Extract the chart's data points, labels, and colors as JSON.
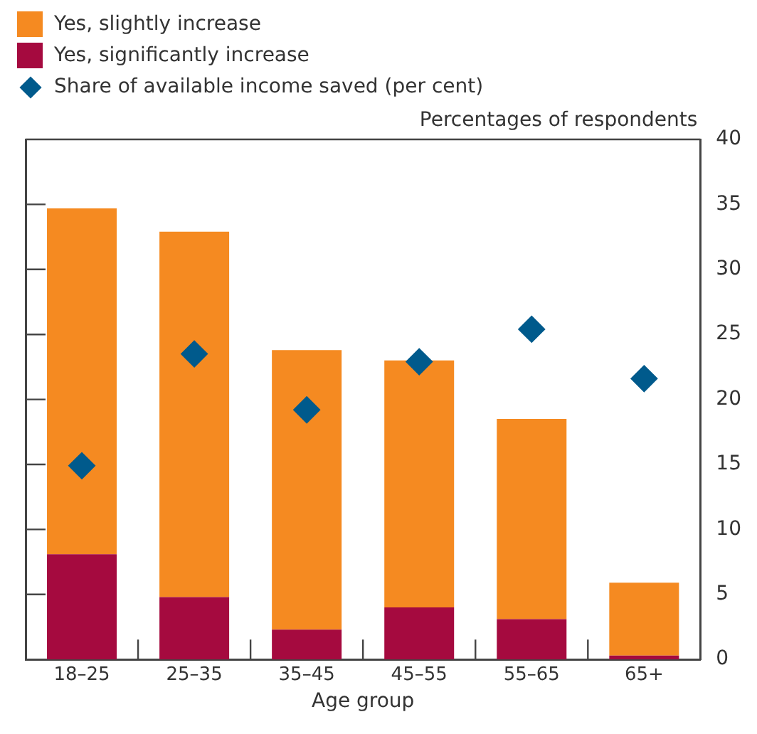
{
  "chart_data": {
    "type": "bar",
    "stacked": true,
    "categories": [
      "18–25",
      "25–35",
      "35–45",
      "45–55",
      "55–65",
      "65+"
    ],
    "series": [
      {
        "name": "Yes, significantly increase",
        "color": "#a50a3f",
        "values": [
          8.1,
          4.8,
          2.3,
          4.0,
          3.1,
          0.3
        ]
      },
      {
        "name": "Yes, slightly increase",
        "color": "#f58a21",
        "values": [
          26.6,
          28.1,
          21.5,
          19.0,
          15.4,
          5.6
        ]
      },
      {
        "name": "Share of available income saved (per cent)",
        "type": "scatter",
        "marker": "diamond",
        "color": "#005a8c",
        "x": [
          "18–25",
          "25–35",
          "35–45",
          "45–55",
          "55–65",
          "65+"
        ],
        "values": [
          14.9,
          23.5,
          19.2,
          22.9,
          25.4,
          21.6
        ]
      }
    ],
    "xlabel": "Age group",
    "ylabel": "Percentages of respondents",
    "ylim": [
      0,
      40
    ],
    "yticks": [
      0,
      5,
      10,
      15,
      20,
      25,
      30,
      35,
      40
    ],
    "grid": false,
    "legend": "top left"
  }
}
